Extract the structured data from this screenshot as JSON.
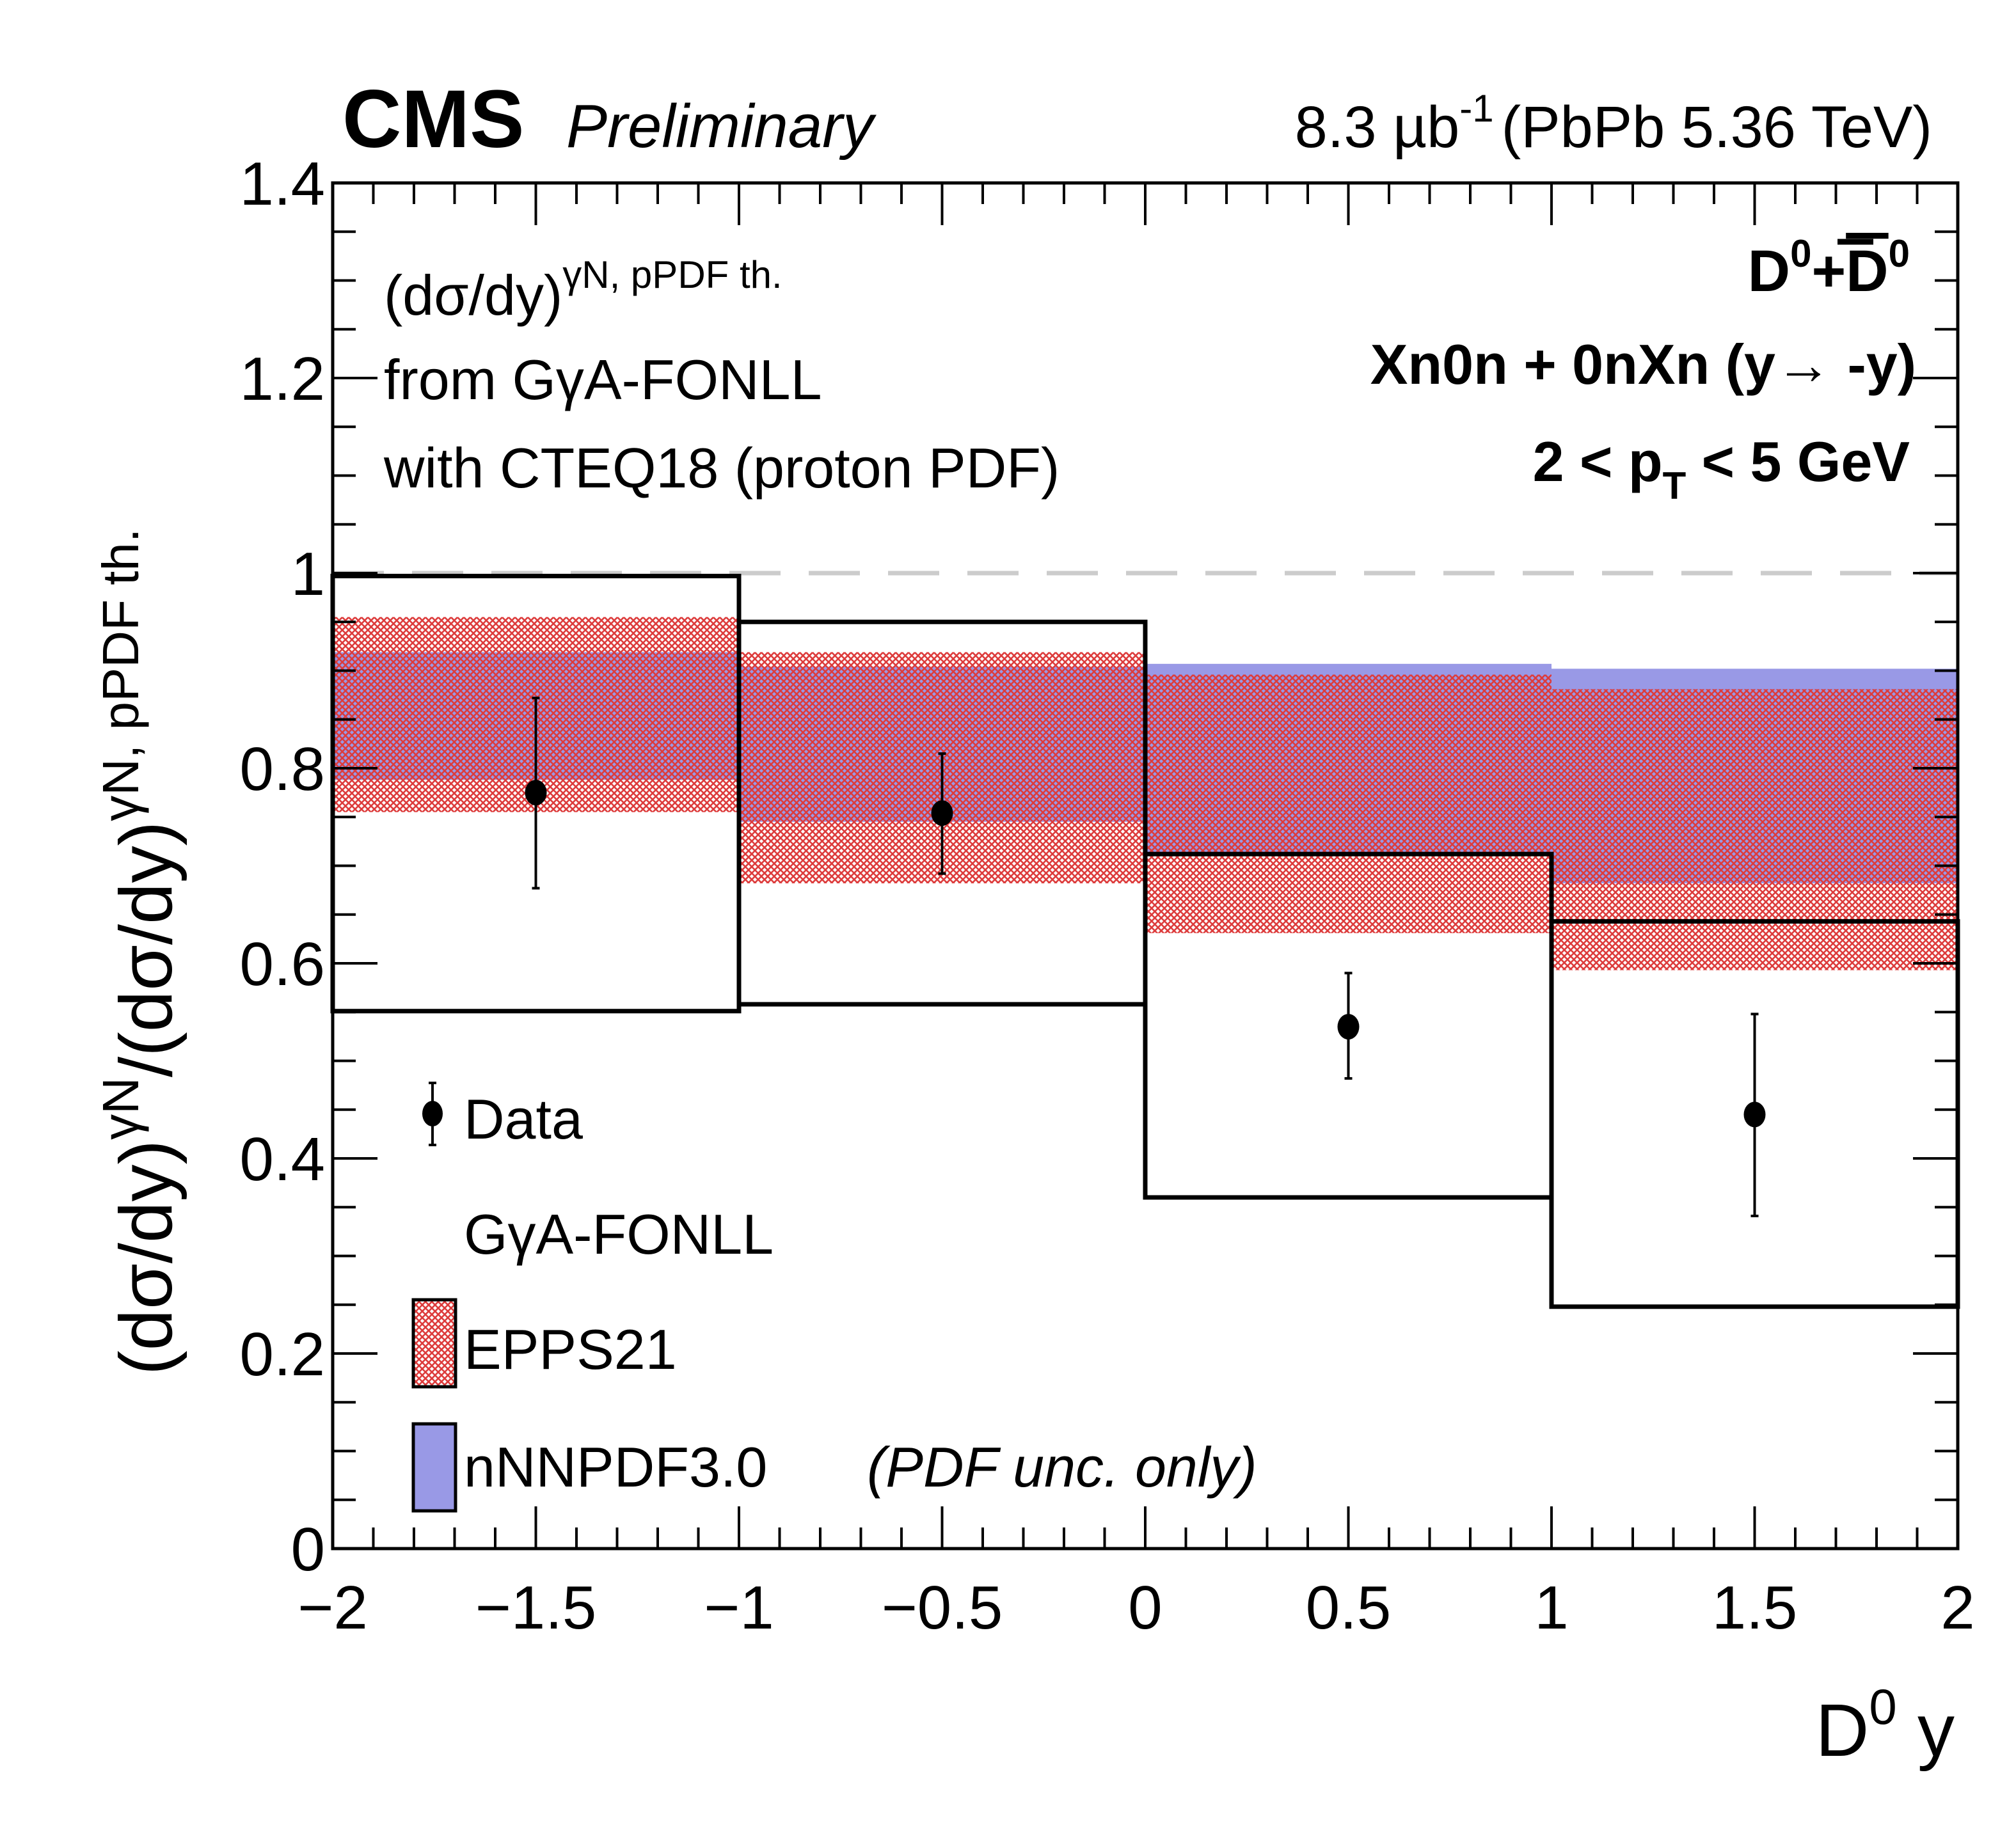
{
  "chart_data": {
    "type": "bar",
    "experiment": "CMS",
    "experiment_status": "Preliminary",
    "lumi_text": "8.3 µb",
    "lumi_sup": "-1",
    "lumi_suffix": "(PbPb 5.36 TeV)",
    "xlabel": "D",
    "xlabel_sup": "0",
    "xlabel_suffix": " y",
    "ylabel": "(dσ/dy)",
    "ylabel_sup1": "γN",
    "ylabel_mid": "/(dσ/dy)",
    "ylabel_sup2": "γN, pPDF th.",
    "xlim": [
      -2,
      2
    ],
    "ylim": [
      0,
      1.4
    ],
    "x_major_step": 0.5,
    "x_minor_step": 0.1,
    "y_major_step": 0.2,
    "y_minor_step": 0.05,
    "x_tick_labels": [
      "−2",
      "−1.5",
      "−1",
      "−0.5",
      "0",
      "0.5",
      "1",
      "1.5",
      "2"
    ],
    "y_tick_labels": [
      "0",
      "0.2",
      "0.4",
      "0.6",
      "0.8",
      "1",
      "1.2",
      "1.4"
    ],
    "reference_line": {
      "y": 1.0,
      "style": "dashed",
      "color": "#cccccc"
    },
    "bins": [
      [
        -2,
        -1
      ],
      [
        -1,
        0
      ],
      [
        0,
        1
      ],
      [
        1,
        2
      ]
    ],
    "series": [
      {
        "name": "Data",
        "kind": "points",
        "x": [
          -1.5,
          -0.5,
          0.5,
          1.5
        ],
        "y": [
          0.775,
          0.754,
          0.535,
          0.445
        ],
        "err_high": [
          0.872,
          0.815,
          0.59,
          0.548
        ],
        "err_low": [
          0.677,
          0.692,
          0.482,
          0.341
        ],
        "syst_box_high": [
          0.997,
          0.95,
          0.712,
          0.643
        ],
        "syst_box_low": [
          0.551,
          0.558,
          0.36,
          0.248
        ],
        "color": "#000000"
      },
      {
        "name": "EPPS21",
        "kind": "band",
        "high": [
          0.955,
          0.919,
          0.896,
          0.881
        ],
        "low": [
          0.755,
          0.682,
          0.631,
          0.593
        ],
        "color": "#dd3c3c",
        "fill": "crosshatch"
      },
      {
        "name": "nNNPDF3.0",
        "kind": "band",
        "high": [
          0.919,
          0.904,
          0.907,
          0.902
        ],
        "low": [
          0.788,
          0.745,
          0.712,
          0.682
        ],
        "color": "#9999e6",
        "fill": "solid"
      }
    ],
    "annotations": {
      "left_line1": "(dσ/dy)",
      "left_line1_sup": "γN, pPDF th.",
      "left_line2": "from GγA-FONLL",
      "left_line3": "with CTEQ18 (proton PDF)",
      "right_line1_a": "D",
      "right_line1_b": "0",
      "right_line1_c": "+",
      "right_line1_d": "D",
      "right_line1_e": "0",
      "right_line2": "Xn0n + 0nXn (y→ -y)",
      "right_line3_a": "2 < p",
      "right_line3_sub": "T",
      "right_line3_b": " < 5 GeV"
    },
    "legend": {
      "placement": "bottom-left",
      "entries": [
        {
          "label": "Data",
          "marker": "point-with-errorbar"
        },
        {
          "label": "GγA-FONLL",
          "marker": "none"
        },
        {
          "label": "EPPS21",
          "marker": "crosshatch-red-box"
        },
        {
          "label": "nNNPDF3.0",
          "label_suffix": "(PDF unc. only)",
          "marker": "blue-box"
        }
      ]
    }
  }
}
